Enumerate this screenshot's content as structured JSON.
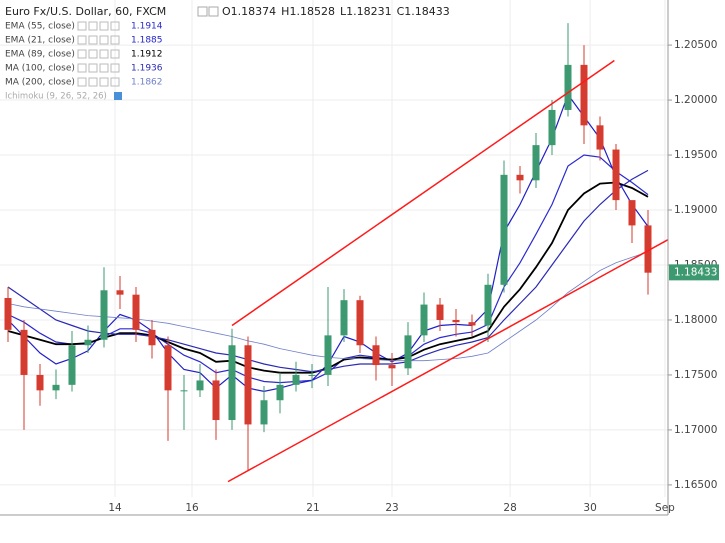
{
  "chart_data": {
    "type": "candlestick",
    "title": "Euro Fx/U.S. Dollar, 60, FXCM",
    "ohlc_header": [
      {
        "label": "O",
        "value": 1.18374
      },
      {
        "label": "H",
        "value": 1.18528
      },
      {
        "label": "L",
        "value": 1.18231
      },
      {
        "label": "C",
        "value": 1.18433
      }
    ],
    "x": [
      0,
      1,
      2,
      3,
      4,
      5,
      6,
      7,
      8,
      9,
      10,
      11,
      12,
      13,
      14,
      15,
      16,
      17,
      18,
      19,
      20,
      21,
      22,
      23,
      24,
      25,
      26,
      27,
      28,
      29,
      30,
      31,
      32,
      33,
      34,
      35,
      36,
      37,
      38,
      39,
      40
    ],
    "open": [
      1.182,
      1.1791,
      1.175,
      1.1736,
      1.1741,
      1.1777,
      1.1782,
      1.1827,
      1.1823,
      1.1791,
      1.1777,
      1.1736,
      1.1736,
      1.1745,
      1.1709,
      1.1777,
      1.1705,
      1.1727,
      1.1741,
      1.175,
      1.175,
      1.1786,
      1.1818,
      1.1777,
      1.1759,
      1.1756,
      1.1786,
      1.1814,
      1.18,
      1.1798,
      1.1795,
      1.1832,
      1.1932,
      1.1927,
      1.1959,
      1.1991,
      1.2032,
      1.1977,
      1.1955,
      1.1909,
      1.1886
    ],
    "high": [
      1.183,
      1.18,
      1.176,
      1.1755,
      1.179,
      1.1795,
      1.1848,
      1.184,
      1.183,
      1.18,
      1.1785,
      1.175,
      1.176,
      1.1755,
      1.1792,
      1.1785,
      1.174,
      1.1752,
      1.1762,
      1.176,
      1.183,
      1.1828,
      1.1822,
      1.1785,
      1.177,
      1.1798,
      1.1825,
      1.182,
      1.181,
      1.1805,
      1.1842,
      1.1945,
      1.194,
      1.197,
      1.2,
      1.207,
      1.205,
      1.1985,
      1.196,
      1.1905,
      1.19
    ],
    "low": [
      1.178,
      1.17,
      1.1722,
      1.1728,
      1.1735,
      1.177,
      1.1775,
      1.181,
      1.178,
      1.1765,
      1.169,
      1.17,
      1.173,
      1.1691,
      1.17,
      1.1663,
      1.1698,
      1.1715,
      1.1735,
      1.1738,
      1.174,
      1.178,
      1.177,
      1.1745,
      1.174,
      1.175,
      1.178,
      1.179,
      1.1785,
      1.1785,
      1.178,
      1.1825,
      1.1915,
      1.192,
      1.195,
      1.1985,
      1.196,
      1.1945,
      1.19,
      1.187,
      1.1823
    ],
    "close": [
      1.1791,
      1.175,
      1.1736,
      1.1741,
      1.1777,
      1.1782,
      1.1827,
      1.1823,
      1.1791,
      1.1777,
      1.1736,
      1.1736,
      1.1745,
      1.1709,
      1.1777,
      1.1705,
      1.1727,
      1.1741,
      1.175,
      1.175,
      1.1786,
      1.1818,
      1.1777,
      1.1759,
      1.1756,
      1.1786,
      1.1814,
      1.18,
      1.1798,
      1.1795,
      1.1832,
      1.1932,
      1.1927,
      1.1959,
      1.1991,
      1.2032,
      1.1977,
      1.1955,
      1.1909,
      1.1886,
      1.1843
    ],
    "up_color": "#3d9970",
    "down_color": "#d63b2f",
    "series": [
      {
        "name": "EMA (55, close)",
        "color": "#2b2bd0",
        "width": 1.2,
        "values": [
          1.1805,
          1.1798,
          1.1788,
          1.178,
          1.1778,
          1.1778,
          1.1785,
          1.1792,
          1.1792,
          1.1788,
          1.1778,
          1.1768,
          1.1762,
          1.1752,
          1.1755,
          1.1748,
          1.1744,
          1.1743,
          1.1744,
          1.1745,
          1.1752,
          1.1765,
          1.1768,
          1.1766,
          1.1764,
          1.1767,
          1.1778,
          1.1784,
          1.1787,
          1.1789,
          1.1796,
          1.183,
          1.1852,
          1.1878,
          1.1905,
          1.194,
          1.195,
          1.1948,
          1.1935,
          1.1925,
          1.1914
        ]
      },
      {
        "name": "EMA (21, close)",
        "color": "#1f1fc8",
        "width": 1.2,
        "values": [
          1.18,
          1.1785,
          1.177,
          1.176,
          1.1765,
          1.1772,
          1.179,
          1.1805,
          1.18,
          1.179,
          1.177,
          1.1755,
          1.1752,
          1.1738,
          1.175,
          1.1738,
          1.1735,
          1.1738,
          1.1742,
          1.1745,
          1.176,
          1.1785,
          1.178,
          1.177,
          1.1762,
          1.177,
          1.179,
          1.1795,
          1.1796,
          1.1795,
          1.181,
          1.188,
          1.1905,
          1.1935,
          1.1965,
          1.2005,
          1.1985,
          1.1965,
          1.193,
          1.1905,
          1.1885
        ]
      },
      {
        "name": "EMA (89, close)",
        "color": "#000000",
        "width": 1.8,
        "values": [
          1.179,
          1.1786,
          1.1782,
          1.1778,
          1.1778,
          1.1779,
          1.1784,
          1.1788,
          1.1788,
          1.1786,
          1.178,
          1.1774,
          1.177,
          1.1762,
          1.1763,
          1.1757,
          1.1754,
          1.1752,
          1.1752,
          1.1752,
          1.1756,
          1.1764,
          1.1766,
          1.1765,
          1.1764,
          1.1766,
          1.1773,
          1.1778,
          1.1781,
          1.1784,
          1.179,
          1.1812,
          1.1828,
          1.1848,
          1.187,
          1.19,
          1.1915,
          1.1924,
          1.1925,
          1.192,
          1.1912
        ]
      },
      {
        "name": "MA (100, close)",
        "color": "#2a2ab4",
        "width": 1.2,
        "values": [
          1.183,
          1.182,
          1.181,
          1.18,
          1.1795,
          1.179,
          1.1788,
          1.1787,
          1.1787,
          1.1785,
          1.1782,
          1.1778,
          1.1774,
          1.177,
          1.1768,
          1.1764,
          1.176,
          1.1757,
          1.1755,
          1.1753,
          1.1755,
          1.1758,
          1.176,
          1.176,
          1.176,
          1.1762,
          1.1768,
          1.1773,
          1.1777,
          1.178,
          1.1784,
          1.18,
          1.1815,
          1.183,
          1.185,
          1.187,
          1.189,
          1.1905,
          1.1918,
          1.1928,
          1.1936
        ]
      },
      {
        "name": "MA (200, close)",
        "color": "#6f7fc9",
        "width": 0.8,
        "values": [
          1.1815,
          1.1812,
          1.181,
          1.1808,
          1.1806,
          1.1804,
          1.1803,
          1.1802,
          1.1801,
          1.1799,
          1.1797,
          1.1794,
          1.1791,
          1.1788,
          1.1785,
          1.1781,
          1.1778,
          1.1774,
          1.1771,
          1.1768,
          1.1766,
          1.1765,
          1.1765,
          1.1764,
          1.1763,
          1.1763,
          1.1763,
          1.1764,
          1.1765,
          1.1767,
          1.177,
          1.178,
          1.179,
          1.18,
          1.1812,
          1.1825,
          1.1835,
          1.1845,
          1.1852,
          1.1857,
          1.1862
        ]
      }
    ],
    "extra_indicator": "Ichimoku (9, 26, 52, 26)",
    "trendlines": [
      {
        "x": [
          14,
          37.9
        ],
        "y": [
          1.1795,
          1.2036
        ],
        "color": "#ff1a1a"
      },
      {
        "x": [
          13.75,
          41.25
        ],
        "y": [
          1.1653,
          1.1873
        ],
        "color": "#ff1a1a"
      }
    ],
    "last_price": 1.18433,
    "last_price_color": "#3d9970",
    "xlim": [
      -0.5,
      41.25
    ],
    "xticks": [
      {
        "value": 6.69,
        "label": "14"
      },
      {
        "value": 11.5,
        "label": "16"
      },
      {
        "value": 19.06,
        "label": "21"
      },
      {
        "value": 24.0,
        "label": "23"
      },
      {
        "value": 31.38,
        "label": "28"
      },
      {
        "value": 36.38,
        "label": "30"
      },
      {
        "value": 41.06,
        "label": "Sep"
      }
    ],
    "ylim": [
      1.1639,
      1.2091
    ],
    "yticks": [
      {
        "value": 1.165,
        "label": "1.16500"
      },
      {
        "value": 1.17,
        "label": "1.17000"
      },
      {
        "value": 1.175,
        "label": "1.17500"
      },
      {
        "value": 1.18,
        "label": "1.18000"
      },
      {
        "value": 1.185,
        "label": "1.18500"
      },
      {
        "value": 1.19,
        "label": "1.19000"
      },
      {
        "value": 1.195,
        "label": "1.19500"
      },
      {
        "value": 1.2,
        "label": "1.20000"
      },
      {
        "value": 1.205,
        "label": "1.20500"
      }
    ],
    "grid": true
  }
}
